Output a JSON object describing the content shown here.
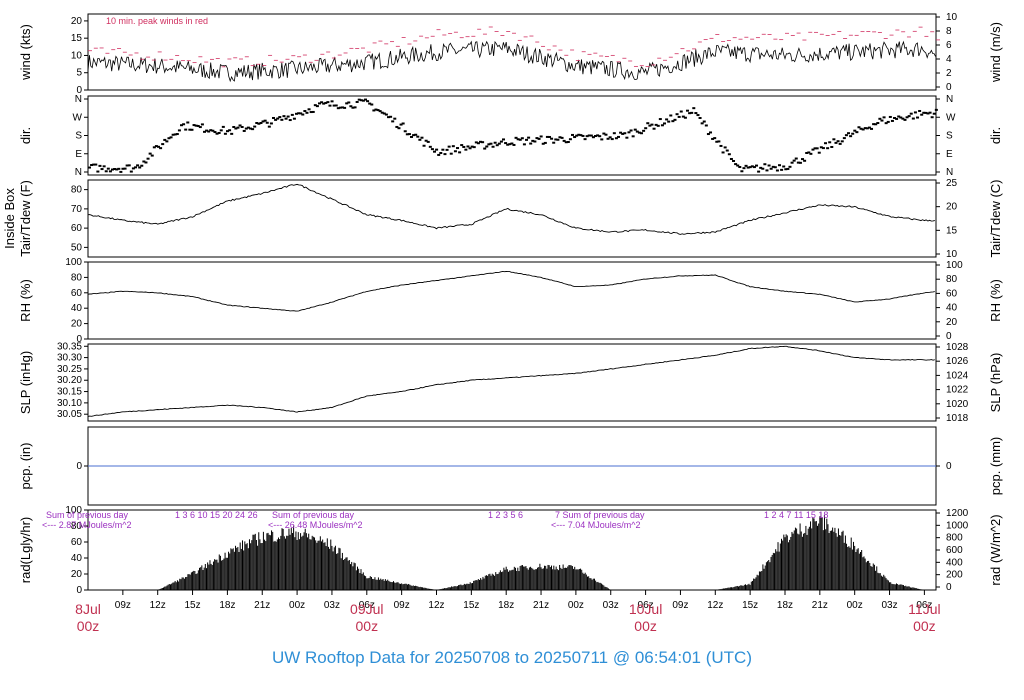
{
  "caption": "UW Rooftop Data for 20250708  to  20250711 @ 06:54:01  (UTC)",
  "chart_data": {
    "type": "line",
    "time_axis": {
      "start": "2025-07-08T06:00Z",
      "end": "2025-07-11T06:54Z",
      "hour_ticks": [
        "09z",
        "12z",
        "15z",
        "18z",
        "21z",
        "00z",
        "03z",
        "06z",
        "09z",
        "12z",
        "15z",
        "18z",
        "21z",
        "00z",
        "03z",
        "06z",
        "09z",
        "12z",
        "15z",
        "18z",
        "21z",
        "00z",
        "03z",
        "06z"
      ],
      "date_labels": [
        {
          "date": "8Jul",
          "time": "00z"
        },
        {
          "date": "09Jul",
          "time": "00z"
        },
        {
          "date": "10Jul",
          "time": "00z"
        },
        {
          "date": "11Jul",
          "time": "00z"
        }
      ]
    },
    "panels": [
      {
        "id": "wind",
        "ylabel_left": "wind (kts)",
        "ylabel_right": "wind (m/s)",
        "ylim": [
          0,
          22
        ],
        "ticks_left": [
          "0",
          "5",
          "10",
          "15",
          "20"
        ],
        "ticks_right": [
          "0",
          "2",
          "4",
          "6",
          "8",
          "10"
        ],
        "annotation": "10 min. peak winds in red",
        "series": [
          {
            "name": "wind",
            "color": "#000000",
            "x": [
              0,
              6,
              12,
              18,
              24,
              30,
              36,
              42,
              48,
              54,
              60,
              66,
              72,
              73
            ],
            "y": [
              8,
              7,
              5,
              6,
              8,
              11,
              12,
              7,
              5,
              11,
              10,
              11,
              12,
              10
            ]
          },
          {
            "name": "10 min. peak winds",
            "color": "#d03060",
            "x": [
              0,
              6,
              12,
              18,
              24,
              30,
              36,
              42,
              48,
              54,
              60,
              66,
              72,
              73
            ],
            "y": [
              11,
              10,
              8,
              9,
              12,
              16,
              17,
              10,
              8,
              15,
              15,
              16,
              17,
              14
            ]
          }
        ]
      },
      {
        "id": "dir",
        "ylabel_left": "dir.",
        "ylabel_right": "dir.",
        "ticks_left": [
          "N",
          "E",
          "S",
          "W",
          "N"
        ],
        "ticks_right": [
          "N",
          "E",
          "S",
          "W",
          "N"
        ],
        "series": [
          {
            "name": "direction",
            "x": [
              0,
              4,
              8,
              12,
              16,
              20,
              24,
              30,
              36,
              40,
              46,
              52,
              56,
              60,
              64,
              68,
              72,
              73
            ],
            "y": [
              20,
              20,
              230,
              200,
              250,
              330,
              340,
              100,
              150,
              160,
              180,
              300,
              10,
              30,
              140,
              250,
              290,
              290
            ]
          }
        ]
      },
      {
        "id": "tair",
        "ylabel_left": "Tair/Tdew (F)",
        "ylabel_left2": "Inside Box",
        "ylabel_right": "Tair/Tdew (C)",
        "ylim": [
          45,
          85
        ],
        "ticks_left": [
          "50",
          "60",
          "70",
          "80"
        ],
        "ticks_right": [
          "10",
          "15",
          "20",
          "25"
        ],
        "series": [
          {
            "name": "tair",
            "x": [
              0,
              3,
              6,
              9,
              12,
              15,
              18,
              21,
              24,
              27,
              30,
              33,
              36,
              39,
              42,
              45,
              48,
              51,
              54,
              57,
              60,
              63,
              66,
              69,
              72,
              73
            ],
            "y": [
              67,
              64,
              62,
              66,
              74,
              78,
              83,
              75,
              67,
              64,
              60,
              62,
              70,
              67,
              60,
              58,
              59,
              57,
              58,
              64,
              68,
              72,
              71,
              66,
              64,
              64
            ]
          }
        ]
      },
      {
        "id": "rh",
        "ylabel_left": "RH (%)",
        "ylabel_right": "RH (%)",
        "ylim": [
          0,
          100
        ],
        "ticks_left": [
          "0",
          "20",
          "40",
          "60",
          "80",
          "100"
        ],
        "ticks_right": [
          "0",
          "20",
          "40",
          "60",
          "80",
          "100"
        ],
        "series": [
          {
            "name": "rh",
            "x": [
              0,
              3,
              6,
              9,
              12,
              15,
              18,
              21,
              24,
              27,
              30,
              33,
              36,
              39,
              42,
              45,
              48,
              51,
              54,
              57,
              60,
              63,
              66,
              69,
              72,
              73
            ],
            "y": [
              58,
              62,
              60,
              55,
              44,
              40,
              36,
              48,
              62,
              70,
              76,
              82,
              88,
              80,
              68,
              70,
              78,
              82,
              83,
              68,
              62,
              58,
              48,
              52,
              60,
              62
            ]
          }
        ]
      },
      {
        "id": "slp",
        "ylabel_left": "SLP (inHg)",
        "ylabel_right": "SLP (hPa)",
        "ylim": [
          30.02,
          30.36
        ],
        "ticks_left": [
          "30.05",
          "30.10",
          "30.15",
          "30.20",
          "30.25",
          "30.30",
          "30.35"
        ],
        "ticks_right": [
          "1018",
          "1020",
          "1022",
          "1024",
          "1026",
          "1028"
        ],
        "series": [
          {
            "name": "slp",
            "x": [
              0,
              3,
              6,
              9,
              12,
              15,
              18,
              21,
              24,
              27,
              30,
              33,
              36,
              39,
              42,
              45,
              48,
              51,
              54,
              57,
              60,
              63,
              66,
              69,
              72,
              73
            ],
            "y": [
              30.04,
              30.06,
              30.07,
              30.08,
              30.09,
              30.08,
              30.06,
              30.08,
              30.13,
              30.15,
              30.18,
              30.2,
              30.21,
              30.22,
              30.23,
              30.25,
              30.27,
              30.29,
              30.31,
              30.34,
              30.35,
              30.33,
              30.3,
              30.29,
              30.29,
              30.29
            ]
          }
        ]
      },
      {
        "id": "pcp",
        "ylabel_left": "pcp. (in)",
        "ylabel_right": "pcp. (mm)",
        "ticks_left": [
          "0"
        ],
        "ticks_right": [
          "0"
        ],
        "series": [
          {
            "name": "pcp",
            "color": "#4a6fd0",
            "x": [
              0,
              73
            ],
            "y": [
              0,
              0
            ]
          }
        ]
      },
      {
        "id": "rad",
        "ylabel_left": "rad(Lgly/hr)",
        "ylabel_right": "rad (W/m^2)",
        "ylim": [
          0,
          100
        ],
        "ticks_left": [
          "0",
          "20",
          "40",
          "60",
          "80",
          "100"
        ],
        "ticks_right": [
          "0",
          "200",
          "400",
          "600",
          "800",
          "1000",
          "1200"
        ],
        "series": [
          {
            "name": "rad",
            "x": [
              6,
              9,
              12,
              15,
              18,
              21,
              24,
              30,
              33,
              36,
              39,
              42,
              45,
              54,
              57,
              60,
              63,
              66,
              69,
              72
            ],
            "y": [
              0,
              22,
              50,
              72,
              78,
              60,
              18,
              0,
              10,
              28,
              32,
              30,
              0,
              0,
              8,
              70,
              95,
              60,
              10,
              0
            ]
          }
        ],
        "annotations": [
          {
            "text": "Sum of previous day",
            "sub": "<--- 2.87 MJoules/m^2",
            "hours": "1 3 6 10 15 20 24 26"
          },
          {
            "text": "Sum of previous day",
            "sub": "<--- 26.48 MJoules/m^2",
            "hours": "1 2 3 5 6"
          },
          {
            "text": "7 Sum of previous day",
            "sub": "<--- 7.04 MJoules/m^2",
            "hours": "1 2 4 7 11 15 18"
          }
        ]
      }
    ]
  }
}
